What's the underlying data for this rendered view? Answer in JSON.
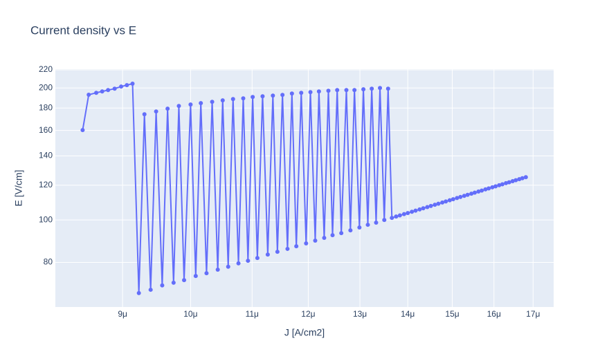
{
  "chart_data": {
    "type": "line",
    "title": "Current density vs E",
    "x_label": "J [A/cm2]",
    "y_label": "E [V/cm]",
    "xlog": true,
    "ylog": true,
    "grid": true,
    "markers": true,
    "color": "#636efa",
    "xlim": [
      8.11e-06,
      1.755e-05
    ],
    "ylim": [
      63.3,
      220.8
    ],
    "xticks": [
      {
        "value": 9e-06,
        "label": "9μ"
      },
      {
        "value": 1e-05,
        "label": "10μ"
      },
      {
        "value": 1.1e-05,
        "label": "11μ"
      },
      {
        "value": 1.2e-05,
        "label": "12μ"
      },
      {
        "value": 1.3e-05,
        "label": "13μ"
      },
      {
        "value": 1.4e-05,
        "label": "14μ"
      },
      {
        "value": 1.5e-05,
        "label": "15μ"
      },
      {
        "value": 1.6e-05,
        "label": "16μ"
      },
      {
        "value": 1.7e-05,
        "label": "17μ"
      }
    ],
    "yticks": [
      80,
      100,
      120,
      140,
      160,
      180,
      200,
      220
    ],
    "x": [
      8.46e-06,
      8.54e-06,
      8.64e-06,
      8.72e-06,
      8.8e-06,
      8.89e-06,
      8.98e-06,
      9.06e-06,
      9.14e-06,
      9.23e-06,
      9.31e-06,
      9.4e-06,
      9.48e-06,
      9.57e-06,
      9.65e-06,
      9.74e-06,
      9.82e-06,
      9.9e-06,
      1e-05,
      1.008e-05,
      1.016e-05,
      1.025e-05,
      1.034e-05,
      1.043e-05,
      1.051e-05,
      1.06e-05,
      1.068e-05,
      1.077e-05,
      1.085e-05,
      1.093e-05,
      1.101e-05,
      1.109e-05,
      1.118e-05,
      1.127e-05,
      1.136e-05,
      1.144e-05,
      1.153e-05,
      1.162e-05,
      1.17e-05,
      1.178e-05,
      1.187e-05,
      1.196e-05,
      1.204e-05,
      1.213e-05,
      1.22e-05,
      1.23e-05,
      1.238e-05,
      1.246e-05,
      1.255e-05,
      1.263e-05,
      1.273e-05,
      1.281e-05,
      1.289e-05,
      1.299e-05,
      1.307e-05,
      1.316e-05,
      1.324e-05,
      1.333e-05,
      1.341e-05,
      1.35e-05,
      1.358e-05,
      1.366e-05,
      1.375e-05,
      1.383e-05,
      1.392e-05,
      1.4e-05,
      1.409e-05,
      1.417e-05,
      1.426e-05,
      1.434e-05,
      1.443e-05,
      1.451e-05,
      1.46e-05,
      1.468e-05,
      1.477e-05,
      1.485e-05,
      1.494e-05,
      1.502e-05,
      1.511e-05,
      1.519e-05,
      1.528e-05,
      1.536e-05,
      1.545e-05,
      1.553e-05,
      1.562e-05,
      1.57e-05,
      1.579e-05,
      1.587e-05,
      1.596e-05,
      1.604e-05,
      1.613e-05,
      1.621e-05,
      1.63e-05,
      1.638e-05,
      1.647e-05,
      1.655e-05,
      1.664e-05,
      1.672e-05,
      1.681e-05
    ],
    "values": [
      160.3,
      193,
      195,
      196.4,
      197.8,
      199.3,
      201.5,
      203,
      204.6,
      68.1,
      174.2,
      69.3,
      176.8,
      70.9,
      179.4,
      71.9,
      182.0,
      72.9,
      183.4,
      74.5,
      184.7,
      75.6,
      186.0,
      77.0,
      187.4,
      78.2,
      188.7,
      79.6,
      189.4,
      80.7,
      190.8,
      81.9,
      191.5,
      83.4,
      192.2,
      84.6,
      192.9,
      85.9,
      194.3,
      87.1,
      195.0,
      88.4,
      195.7,
      89.7,
      196.4,
      91.0,
      197.1,
      92.3,
      197.8,
      93.3,
      197.8,
      94.7,
      197.8,
      96.1,
      198.6,
      97.5,
      199.3,
      98.6,
      200.0,
      100,
      199.3,
      101.1,
      101.8,
      102.4,
      103.1,
      103.7,
      104.4,
      105.0,
      105.7,
      106.3,
      107.0,
      107.6,
      108.3,
      108.9,
      109.6,
      110.2,
      110.9,
      111.5,
      112.2,
      112.8,
      113.5,
      114.1,
      114.8,
      115.4,
      116.1,
      116.7,
      117.4,
      118.0,
      118.7,
      119.3,
      120.0,
      120.6,
      121.3,
      121.9,
      122.6,
      123.2,
      123.9,
      124.5,
      125.2
    ]
  }
}
